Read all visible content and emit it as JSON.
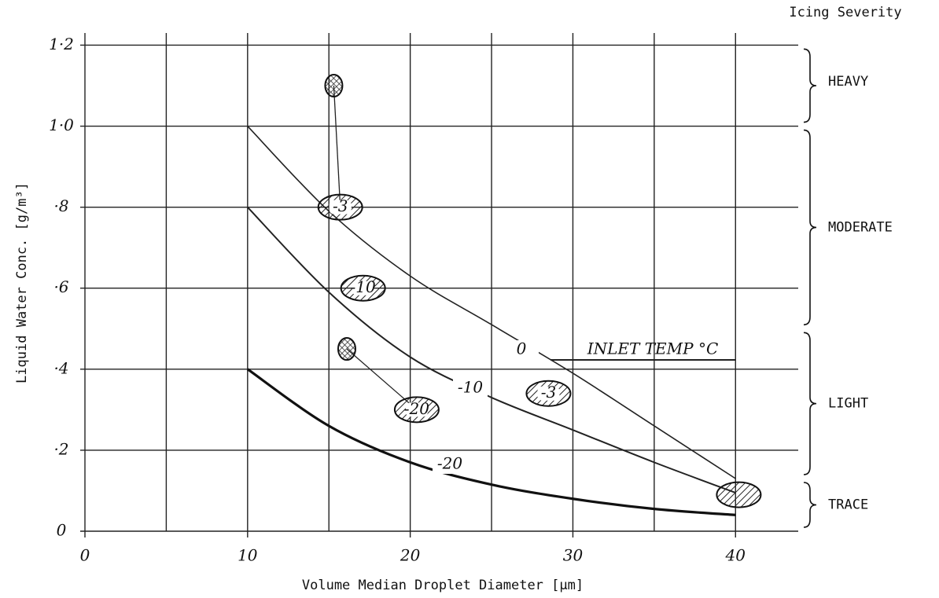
{
  "chart_data": {
    "type": "line",
    "x_label": "Volume Median Droplet Diameter [μm]",
    "y_label": "Liquid Water Conc. [g/m³]",
    "severity_title": "Icing Severity",
    "annotation": "INLET TEMP °C",
    "x": [
      10,
      15,
      20,
      25,
      30,
      35,
      40
    ],
    "series": [
      {
        "name": "0",
        "color": "#222",
        "values": [
          1.0,
          0.79,
          0.63,
          0.51,
          0.39,
          0.26,
          0.13
        ]
      },
      {
        "name": "-10",
        "color": "#222",
        "values": [
          0.8,
          0.59,
          0.43,
          0.33,
          0.25,
          0.17,
          0.095
        ]
      },
      {
        "name": "-20",
        "color": "#111",
        "values": [
          0.4,
          0.26,
          0.17,
          0.115,
          0.08,
          0.055,
          0.04
        ]
      }
    ],
    "xlim": [
      0,
      44
    ],
    "ylim": [
      0,
      1.23
    ],
    "xticks": [
      0,
      10,
      20,
      30,
      40
    ],
    "x_grid": [
      5,
      15,
      25,
      35
    ],
    "yticks": [
      0,
      {
        "value": 0.2,
        "label": "·2"
      },
      {
        "value": 0.4,
        "label": "·4"
      },
      {
        "value": 0.6,
        "label": "·6"
      },
      {
        "value": 0.8,
        "label": "·8"
      },
      {
        "value": 1.0,
        "label": "1·0"
      },
      {
        "value": 1.2,
        "label": "1·2"
      }
    ],
    "grid": true,
    "ice_shapes": [
      {
        "x": 15.3,
        "y": 1.1,
        "label": null
      },
      {
        "x": 15.7,
        "y": 0.8,
        "label": "-3"
      },
      {
        "x": 17.1,
        "y": 0.6,
        "label": "-10"
      },
      {
        "x": 16.1,
        "y": 0.45,
        "label": null
      },
      {
        "x": 20.4,
        "y": 0.3,
        "label": "-20"
      },
      {
        "x": 28.5,
        "y": 0.34,
        "label": "-3"
      },
      {
        "x": 40.2,
        "y": 0.09,
        "label": null
      }
    ],
    "severity": [
      {
        "label": "HEAVY",
        "from": 1.0,
        "to": 1.2
      },
      {
        "label": "MODERATE",
        "from": 0.5,
        "to": 1.0
      },
      {
        "label": "LIGHT",
        "from": 0.13,
        "to": 0.5
      },
      {
        "label": "TRACE",
        "from": 0,
        "to": 0.13
      }
    ]
  }
}
